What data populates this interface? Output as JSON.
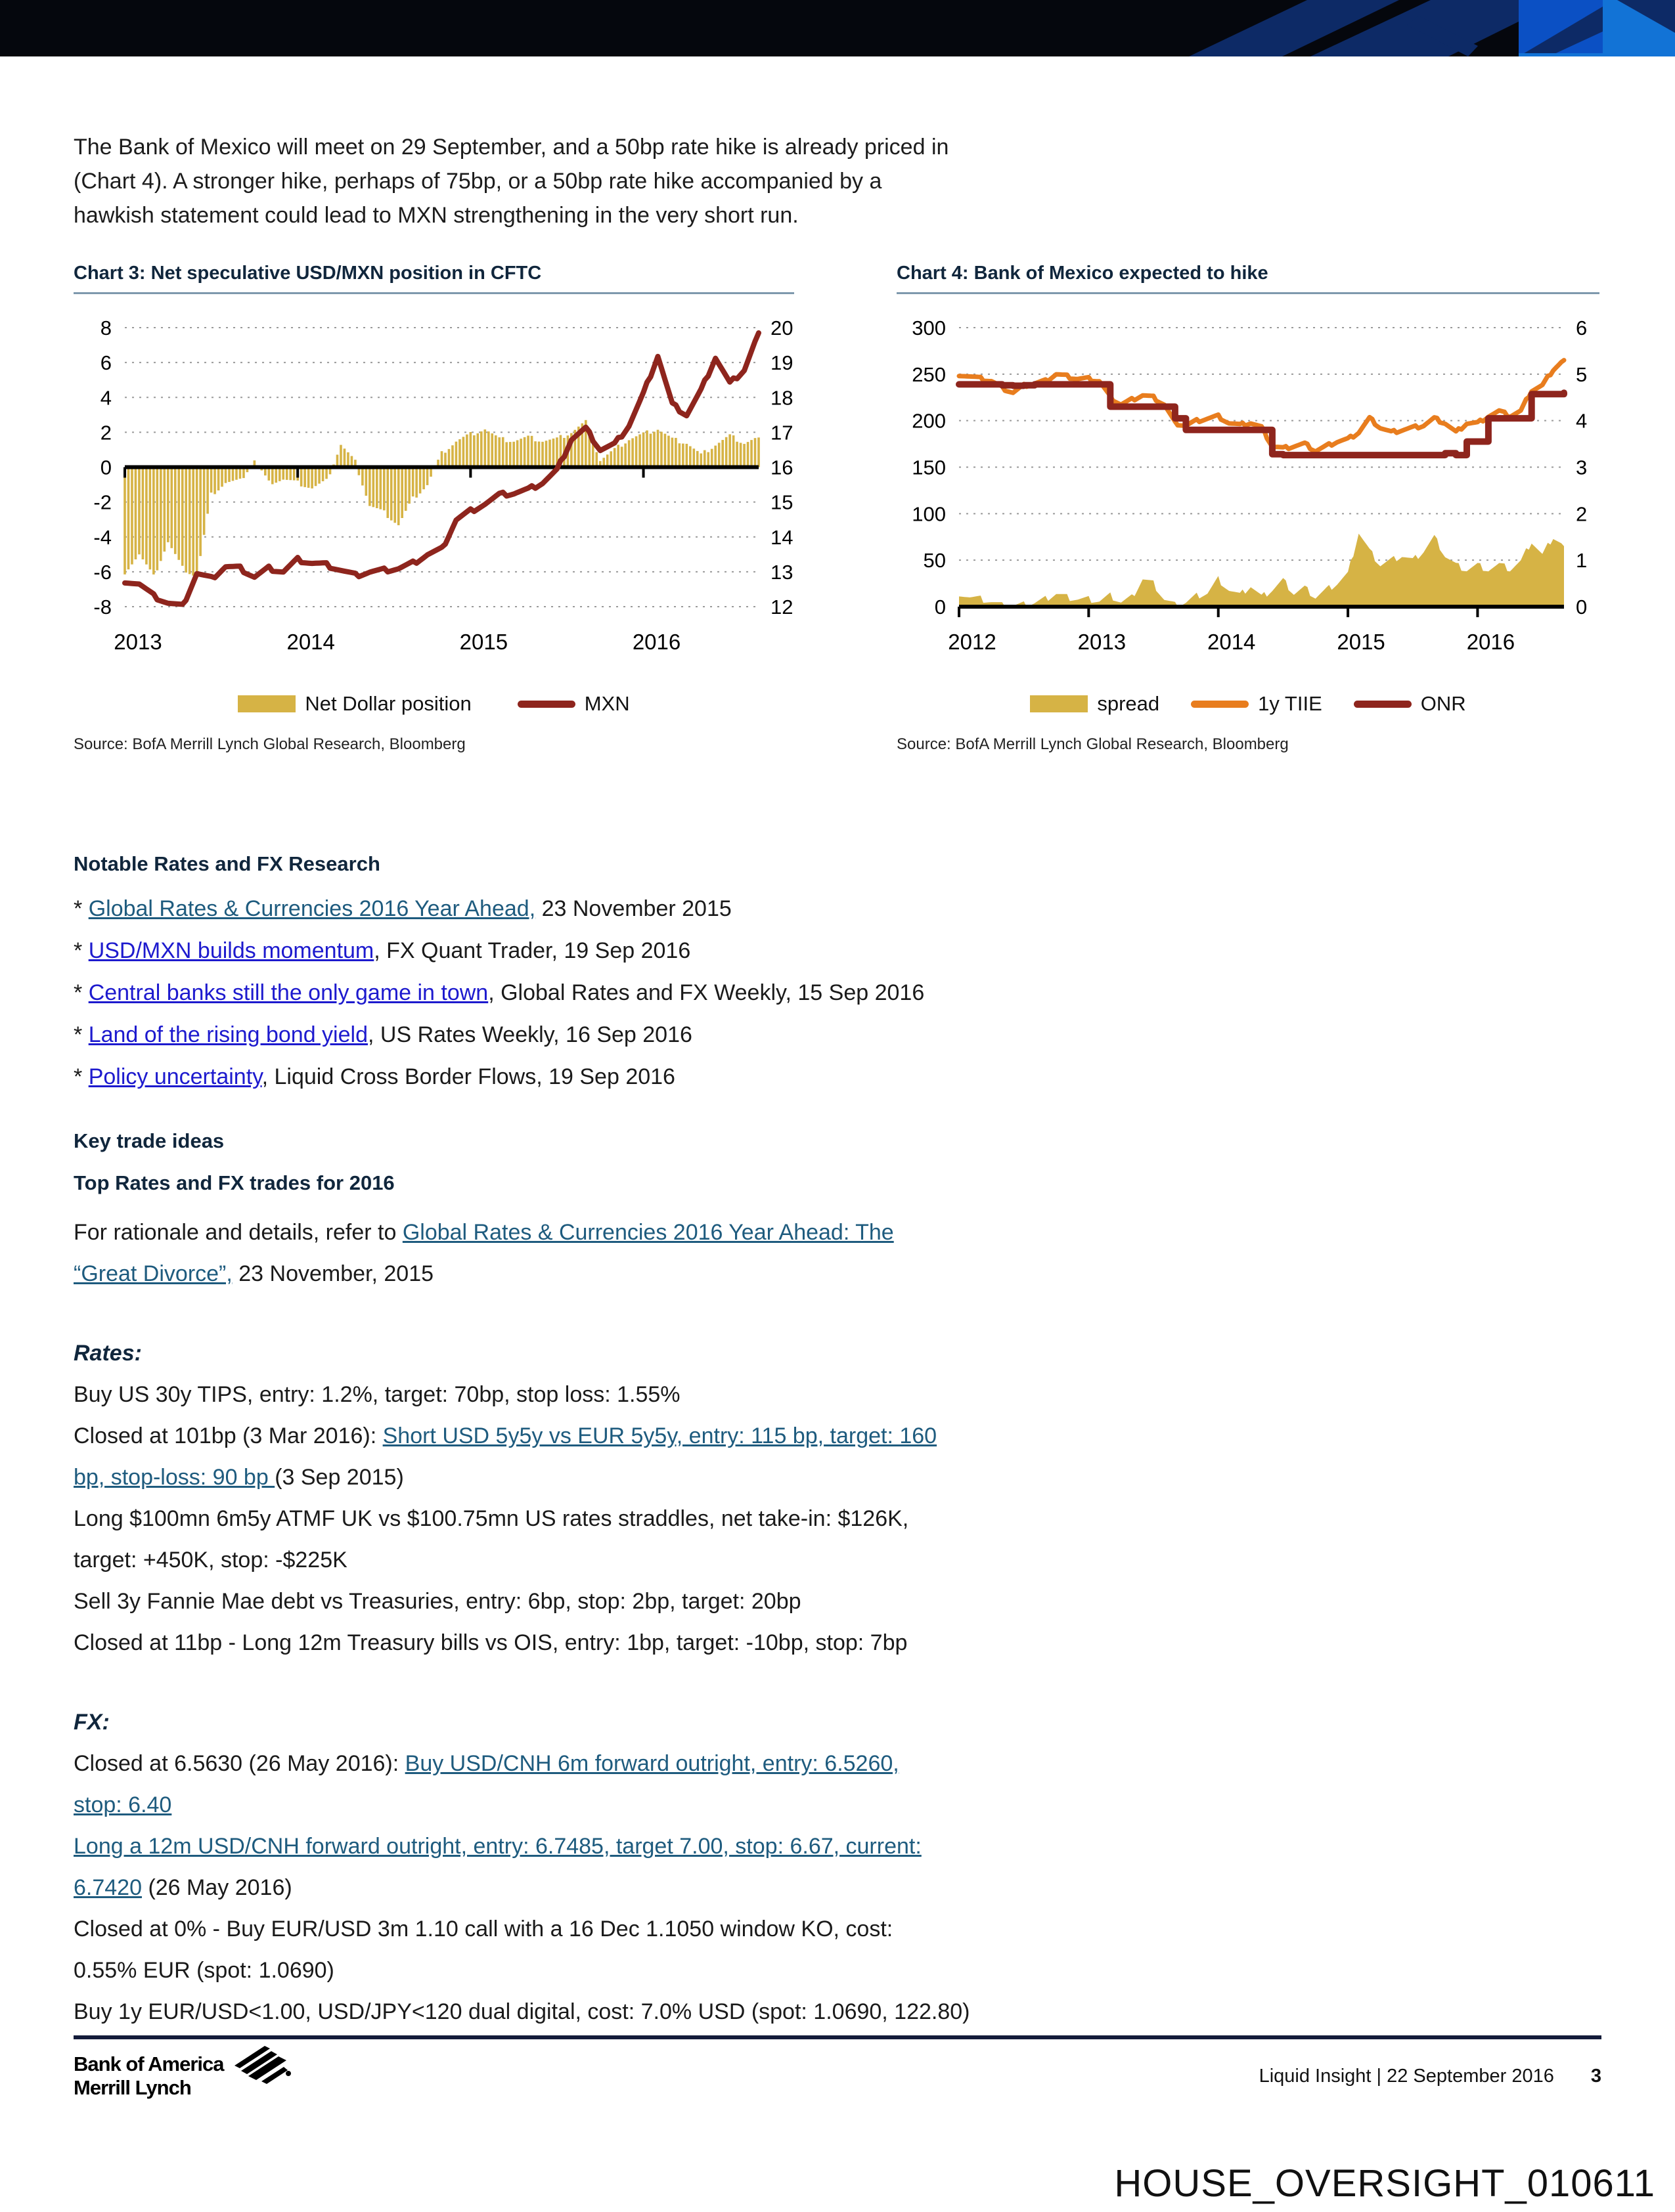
{
  "banner": {
    "colors": {
      "black": "#05070d",
      "navy": "#0d2a66",
      "blue": "#0b50c4",
      "light_blue": "#1273d6"
    }
  },
  "intro": {
    "lines": [
      "The Bank of Mexico will meet on 29 September, and a 50bp rate hike is already priced in",
      "(Chart 4). A stronger hike, perhaps of 75bp, or a 50bp rate hike accompanied by a",
      "hawkish statement could lead to MXN strengthening in the very short run."
    ]
  },
  "charts": [
    {
      "title": "Chart 3: Net speculative USD/MXN position in CFTC",
      "source": "Source: BofA Merrill Lynch Global Research, Bloomberg",
      "legend": [
        {
          "label": "Net Dollar position",
          "type": "bar",
          "color": "#d6b345"
        },
        {
          "label": "MXN",
          "type": "line",
          "color": "#8e251d"
        }
      ],
      "chart_data": {
        "type": "bar+line",
        "x_start": "2013-01",
        "x_end": "2016-09",
        "x_tick_labels": [
          "2013",
          "2014",
          "2015",
          "2016"
        ],
        "left_axis": {
          "ticks": [
            8,
            6,
            4,
            2,
            0,
            -2,
            -4,
            -6,
            -8
          ],
          "range": [
            -8,
            8
          ]
        },
        "right_axis": {
          "ticks": [
            20,
            19,
            18,
            17,
            16,
            15,
            14,
            13,
            12
          ],
          "range": [
            12,
            20
          ]
        },
        "baseline": 0,
        "series": [
          {
            "name": "Net Dollar position",
            "type": "bar",
            "axis": "left",
            "color": "#d6b345",
            "jitter": 0.15,
            "monthly_values": [
              -6.0,
              -5.0,
              -6.3,
              -4.3,
              -5.8,
              -6.3,
              -1.6,
              -0.9,
              -0.8,
              0.4,
              -0.9,
              -0.7,
              -0.9,
              -1.2,
              -0.8,
              1.3,
              0.3,
              -2.2,
              -2.6,
              -3.3,
              -1.8,
              -1.0,
              0.8,
              1.5,
              1.9,
              2.2,
              1.6,
              1.5,
              1.7,
              1.5,
              1.6,
              2.0,
              2.6,
              0.4,
              1.0,
              1.6,
              1.9,
              2.2,
              1.6,
              1.4,
              0.7,
              1.3,
              1.8,
              1.4,
              1.7
            ]
          },
          {
            "name": "MXN",
            "type": "line",
            "axis": "right",
            "color": "#8e251d",
            "jitter": 0.07,
            "width": 8,
            "monthly_values": [
              12.75,
              12.65,
              12.3,
              12.1,
              12.0,
              12.95,
              12.8,
              13.15,
              13.1,
              12.85,
              13.1,
              13.0,
              13.35,
              13.25,
              13.2,
              13.05,
              12.9,
              13.0,
              13.05,
              13.1,
              13.25,
              13.5,
              13.65,
              14.5,
              14.75,
              14.95,
              15.2,
              15.25,
              15.35,
              15.55,
              15.9,
              16.8,
              17.1,
              16.5,
              16.65,
              17.2,
              18.1,
              19.2,
              17.8,
              17.5,
              18.2,
              19.15,
              18.4,
              18.8,
              19.85
            ]
          }
        ]
      }
    },
    {
      "title": "Chart 4: Bank of Mexico expected to hike",
      "source": "Source: BofA Merrill Lynch Global Research, Bloomberg",
      "legend": [
        {
          "label": "spread",
          "type": "bar",
          "color": "#d6b345"
        },
        {
          "label": "1y TIIE",
          "type": "line",
          "color": "#e87d1e"
        },
        {
          "label": "ONR",
          "type": "line",
          "color": "#8e251d"
        }
      ],
      "chart_data": {
        "type": "area+line",
        "x_start": "2012-01",
        "x_end": "2016-09",
        "x_tick_labels": [
          "2012",
          "2013",
          "2014",
          "2015",
          "2016"
        ],
        "left_axis": {
          "ticks": [
            300,
            250,
            200,
            150,
            100,
            50,
            0
          ],
          "range": [
            0,
            300
          ]
        },
        "right_axis": {
          "ticks": [
            6,
            5,
            4,
            3,
            2,
            1,
            0
          ],
          "range": [
            0,
            6
          ]
        },
        "baseline": 0,
        "series": [
          {
            "name": "spread",
            "type": "area",
            "axis": "left",
            "color": "#d6b345",
            "jitter": 4,
            "monthly_values": [
              15,
              10,
              8,
              5,
              1,
              1,
              2,
              4,
              8,
              14,
              10,
              8,
              8,
              6,
              12,
              5,
              10,
              30,
              25,
              8,
              2,
              5,
              12,
              15,
              30,
              18,
              12,
              22,
              10,
              18,
              28,
              14,
              20,
              10,
              18,
              25,
              35,
              80,
              60,
              45,
              50,
              55,
              50,
              60,
              75,
              55,
              45,
              40,
              45,
              40,
              45,
              40,
              48,
              70,
              55,
              75,
              65
            ]
          },
          {
            "name": "1y TIIE",
            "type": "line",
            "axis": "right",
            "color": "#e87d1e",
            "jitter": 0.04,
            "width": 7,
            "monthly_values": [
              5.0,
              4.95,
              4.9,
              4.85,
              4.7,
              4.6,
              4.75,
              4.8,
              4.85,
              5.0,
              4.95,
              4.9,
              4.9,
              4.85,
              4.5,
              4.35,
              4.45,
              4.55,
              4.5,
              4.35,
              3.95,
              3.9,
              4.0,
              4.05,
              4.1,
              3.95,
              3.9,
              3.95,
              3.85,
              3.45,
              3.4,
              3.45,
              3.5,
              3.35,
              3.45,
              3.55,
              3.6,
              3.75,
              4.05,
              3.85,
              3.75,
              3.8,
              3.85,
              3.9,
              4.05,
              3.95,
              3.75,
              3.95,
              3.95,
              4.1,
              4.2,
              4.1,
              4.2,
              4.65,
              4.75,
              5.1,
              5.3
            ]
          },
          {
            "name": "ONR",
            "type": "step",
            "axis": "right",
            "color": "#8e251d",
            "width": 10,
            "monthly_values": [
              4.78,
              4.78,
              4.78,
              4.78,
              4.76,
              4.75,
              4.76,
              4.78,
              4.78,
              4.78,
              4.78,
              4.78,
              4.78,
              4.78,
              4.3,
              4.3,
              4.3,
              4.3,
              4.3,
              4.3,
              4.05,
              3.8,
              3.8,
              3.8,
              3.8,
              3.8,
              3.8,
              3.8,
              3.8,
              3.28,
              3.26,
              3.26,
              3.26,
              3.26,
              3.26,
              3.26,
              3.26,
              3.26,
              3.26,
              3.26,
              3.26,
              3.26,
              3.26,
              3.26,
              3.26,
              3.3,
              3.26,
              3.55,
              3.55,
              4.05,
              4.05,
              4.05,
              4.05,
              4.57,
              4.57,
              4.57,
              4.6
            ]
          }
        ]
      }
    }
  ],
  "research": {
    "heading": "Notable Rates and FX Research",
    "items": [
      [
        [
          "plain",
          "* "
        ],
        [
          "teal",
          "Global Rates & Currencies 2016 Year Ahead,"
        ],
        [
          "plain",
          " 23 November 2015"
        ]
      ],
      [
        [
          "plain",
          "* "
        ],
        [
          "blue",
          "USD/MXN builds momentum"
        ],
        [
          "plain",
          ", FX Quant Trader, 19 Sep 2016"
        ]
      ],
      [
        [
          "plain",
          "* "
        ],
        [
          "blue",
          "Central banks still the only game in town"
        ],
        [
          "plain",
          ", Global Rates and FX Weekly, 15 Sep 2016"
        ]
      ],
      [
        [
          "plain",
          "* "
        ],
        [
          "blue",
          "Land of the rising bond yield"
        ],
        [
          "plain",
          ", US Rates Weekly, 16 Sep 2016"
        ]
      ],
      [
        [
          "plain",
          "* "
        ],
        [
          "blue",
          "Policy uncertainty"
        ],
        [
          "plain",
          ", Liquid Cross Border Flows, 19 Sep 2016"
        ]
      ]
    ]
  },
  "key_trades": {
    "heading": "Key trade ideas",
    "subheading": "Top Rates and FX trades for 2016",
    "lines": [
      [
        [
          "plain",
          "For rationale and details, refer to "
        ],
        [
          "teal",
          "Global Rates & Currencies 2016 Year Ahead: The"
        ]
      ],
      [
        [
          "teal",
          "“Great Divorce”,"
        ],
        [
          "plain",
          " 23 November, 2015"
        ]
      ]
    ]
  },
  "rates": {
    "heading": "Rates:",
    "lines": [
      [
        [
          "plain",
          "Buy US 30y TIPS, entry: 1.2%, target: 70bp, stop loss: 1.55%"
        ]
      ],
      [
        [
          "plain",
          "Closed at 101bp (3 Mar 2016): "
        ],
        [
          "teal",
          "Short USD 5y5y vs EUR 5y5y, entry: 115 bp, target: 160"
        ]
      ],
      [
        [
          "teal",
          "bp, stop-loss: 90 bp "
        ],
        [
          "plain",
          "(3 Sep 2015)"
        ]
      ],
      [
        [
          "plain",
          "Long $100mn 6m5y ATMF UK vs $100.75mn US rates straddles, net take-in: $126K,"
        ]
      ],
      [
        [
          "plain",
          "target: +450K, stop: -$225K"
        ]
      ],
      [
        [
          "plain",
          "Sell 3y Fannie Mae debt vs Treasuries, entry: 6bp, stop: 2bp, target: 20bp"
        ]
      ],
      [
        [
          "plain",
          "Closed at 11bp - Long 12m Treasury bills vs OIS, entry: 1bp, target: -10bp, stop: 7bp"
        ]
      ]
    ]
  },
  "fx": {
    "heading": "FX:",
    "lines": [
      [
        [
          "plain",
          "Closed at 6.5630 (26 May 2016): "
        ],
        [
          "teal",
          "Buy USD/CNH 6m forward outright, entry: 6.5260,"
        ]
      ],
      [
        [
          "teal",
          "stop: 6.40"
        ]
      ],
      [
        [
          "teal",
          "Long a 12m USD/CNH forward outright, entry: 6.7485, target 7.00, stop: 6.67, current:"
        ]
      ],
      [
        [
          "teal",
          "6.7420"
        ],
        [
          "plain",
          " (26 May 2016)"
        ]
      ],
      [
        [
          "plain",
          "Closed at 0% - Buy EUR/USD 3m 1.10 call with a 16 Dec 1.1050 window KO, cost:"
        ]
      ],
      [
        [
          "plain",
          "0.55% EUR (spot: 1.0690)"
        ]
      ],
      [
        [
          "plain",
          "Buy 1y EUR/USD<1.00, USD/JPY<120 dual digital, cost: 7.0% USD (spot: 1.0690, 122.80)"
        ]
      ]
    ]
  },
  "footer": {
    "brand_line1": "Bank of America",
    "brand_line2": "Merrill Lynch",
    "right_text": "Liquid Insight | 22 September 2016",
    "page_number": "3"
  },
  "bates_stamp": "HOUSE_OVERSIGHT_010611",
  "colors": {
    "link_blue": "#1d1ace",
    "link_teal": "#1e5b7e",
    "heading_navy": "#10263c",
    "gold": "#d6b345",
    "dark_red": "#8e251d",
    "orange": "#e87d1e",
    "title_rule": "#7e99ad",
    "footer_rule": "#141c3a"
  }
}
